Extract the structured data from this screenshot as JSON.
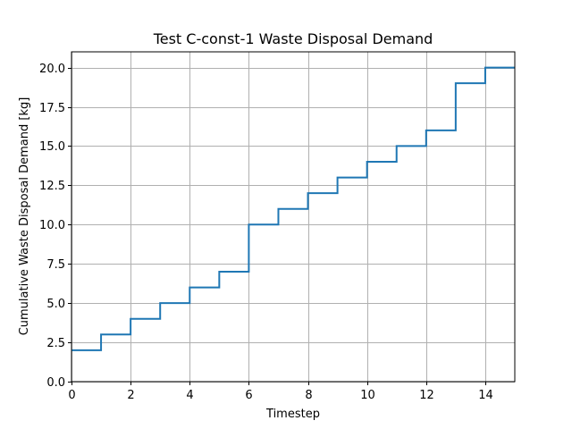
{
  "chart_data": {
    "type": "line",
    "drawstyle": "steps-post",
    "title": "Test C-const-1 Waste Disposal Demand",
    "xlabel": "Timestep",
    "ylabel": "Cumulative Waste Disposal Demand [kg]",
    "xlim": [
      0,
      15
    ],
    "ylim": [
      0,
      21
    ],
    "xticks": [
      0,
      2,
      4,
      6,
      8,
      10,
      12,
      14
    ],
    "xtick_labels": [
      "0",
      "2",
      "4",
      "6",
      "8",
      "10",
      "12",
      "14"
    ],
    "yticks": [
      0,
      2.5,
      5,
      7.5,
      10,
      12.5,
      15,
      17.5,
      20
    ],
    "ytick_labels": [
      "0.0",
      "2.5",
      "5.0",
      "7.5",
      "10.0",
      "12.5",
      "15.0",
      "17.5",
      "20.0"
    ],
    "grid": true,
    "legend": false,
    "series": [
      {
        "color": "#1f77b4",
        "x": [
          0,
          1,
          2,
          3,
          4,
          5,
          6,
          7,
          8,
          9,
          10,
          11,
          12,
          13,
          14,
          15
        ],
        "y": [
          2,
          3,
          4,
          5,
          6,
          7,
          10,
          11,
          12,
          13,
          14,
          15,
          16,
          19,
          20,
          20
        ]
      }
    ]
  }
}
